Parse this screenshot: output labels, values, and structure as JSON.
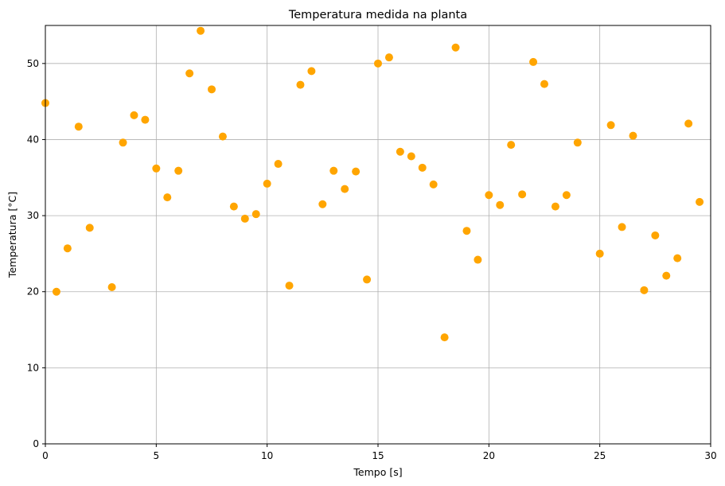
{
  "chart_data": {
    "type": "scatter",
    "title": "Temperatura medida na planta",
    "xlabel": "Tempo [s]",
    "ylabel": "Temperatura [°C]",
    "xlim": [
      0,
      30
    ],
    "ylim": [
      0,
      55
    ],
    "xticks": [
      0,
      5,
      10,
      15,
      20,
      25,
      30
    ],
    "yticks": [
      0,
      10,
      20,
      30,
      40,
      50
    ],
    "grid": true,
    "marker_color": "#ffa500",
    "series": [
      {
        "x": [
          0,
          0.5,
          1,
          1.5,
          2,
          3,
          3.5,
          4,
          4.5,
          5,
          5.5,
          6,
          6.5,
          7,
          7.5,
          8,
          8.5,
          9,
          9.5,
          10,
          10.5,
          11,
          11.5,
          12,
          12.5,
          13,
          13.5,
          14,
          14.5,
          15,
          15.5,
          16,
          16.5,
          17,
          17.5,
          18,
          18.5,
          19,
          19.5,
          20,
          20.5,
          21,
          21.5,
          22,
          22.5,
          23,
          23.5,
          24,
          25,
          25.5,
          26,
          26.5,
          27,
          27.5,
          28,
          28.5,
          29,
          29.5
        ],
        "y": [
          44.8,
          20.0,
          25.7,
          41.7,
          28.4,
          20.6,
          39.6,
          43.2,
          42.6,
          36.2,
          32.4,
          35.9,
          48.7,
          54.3,
          46.6,
          40.4,
          31.2,
          29.6,
          30.2,
          34.2,
          36.8,
          20.8,
          47.2,
          49.0,
          31.5,
          35.9,
          33.5,
          35.8,
          21.6,
          50.0,
          50.8,
          38.4,
          37.8,
          36.3,
          34.1,
          14.0,
          52.1,
          28.0,
          24.2,
          32.7,
          31.4,
          39.3,
          32.8,
          50.2,
          47.3,
          31.2,
          32.7,
          39.6,
          25.0,
          41.9,
          28.5,
          40.5,
          20.2,
          27.4,
          22.1,
          24.4,
          42.1,
          31.8
        ]
      }
    ]
  }
}
